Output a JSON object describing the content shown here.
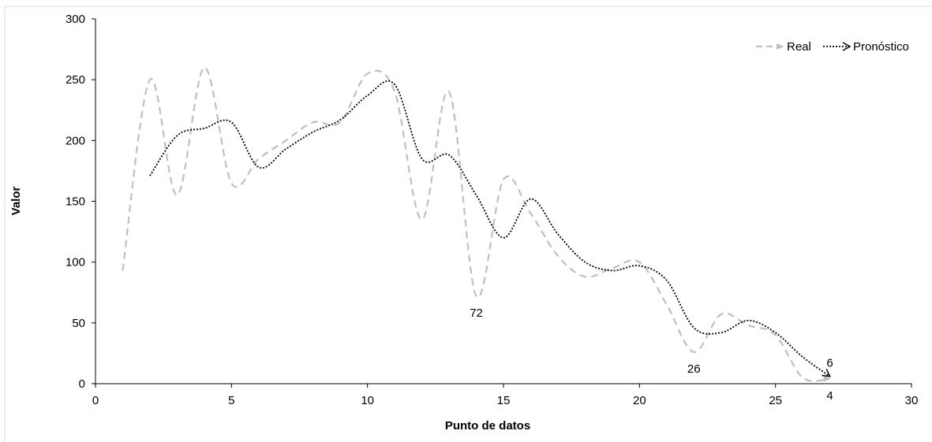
{
  "chart_data": {
    "type": "line",
    "xlabel": "Punto de datos",
    "ylabel": "Valor",
    "xlim": [
      0,
      30
    ],
    "ylim": [
      0,
      300
    ],
    "xticks": [
      0,
      5,
      10,
      15,
      20,
      25,
      30
    ],
    "yticks": [
      0,
      50,
      100,
      150,
      200,
      250,
      300
    ],
    "grid": false,
    "legend_position": "top-right",
    "smooth": true,
    "series": [
      {
        "name": "Real",
        "color": "#bfbfbf",
        "style": "dashed",
        "x": [
          1,
          2,
          3,
          4,
          5,
          6,
          7,
          8,
          9,
          10,
          11,
          12,
          13,
          14,
          15,
          16,
          17,
          18,
          19,
          20,
          21,
          22,
          23,
          24,
          25,
          26,
          27
        ],
        "y": [
          93,
          250,
          155,
          260,
          165,
          185,
          200,
          215,
          215,
          255,
          240,
          135,
          240,
          72,
          168,
          140,
          105,
          88,
          95,
          100,
          65,
          26,
          57,
          48,
          40,
          5,
          4
        ]
      },
      {
        "name": "Pronóstico",
        "color": "#000000",
        "style": "dotted",
        "x": [
          2,
          3,
          4,
          5,
          6,
          7,
          8,
          9,
          10,
          11,
          12,
          13,
          14,
          15,
          16,
          17,
          18,
          19,
          20,
          21,
          22,
          23,
          24,
          25,
          26,
          27
        ],
        "y": [
          171,
          204,
          210,
          215,
          178,
          193,
          207,
          217,
          237,
          246,
          185,
          188,
          155,
          120,
          152,
          123,
          100,
          93,
          97,
          85,
          46,
          42,
          52,
          42,
          22,
          6
        ]
      }
    ],
    "annotations": [
      {
        "text": "72",
        "x": 14,
        "y": 72,
        "position": "below"
      },
      {
        "text": "26",
        "x": 22,
        "y": 26,
        "position": "below"
      },
      {
        "text": "6",
        "x": 27,
        "y": 6,
        "position": "above"
      },
      {
        "text": "4",
        "x": 27,
        "y": 4,
        "position": "below"
      }
    ]
  }
}
